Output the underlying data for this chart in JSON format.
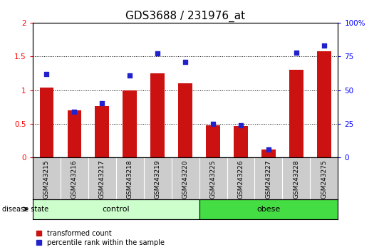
{
  "title": "GDS3688 / 231976_at",
  "samples": [
    "GSM243215",
    "GSM243216",
    "GSM243217",
    "GSM243218",
    "GSM243219",
    "GSM243220",
    "GSM243225",
    "GSM243226",
    "GSM243227",
    "GSM243228",
    "GSM243275"
  ],
  "transformed_count": [
    1.04,
    0.7,
    0.76,
    1.0,
    1.25,
    1.1,
    0.48,
    0.47,
    0.12,
    1.3,
    1.58
  ],
  "percentile_rank_pct": [
    62,
    34,
    40,
    61,
    77,
    71,
    25,
    24,
    6,
    78,
    83
  ],
  "left_ylim": [
    0,
    2
  ],
  "left_yticks": [
    0,
    0.5,
    1.0,
    1.5,
    2.0
  ],
  "left_yticklabels": [
    "0",
    "0.5",
    "1",
    "1.5",
    "2"
  ],
  "right_ylim": [
    0,
    100
  ],
  "right_yticks": [
    0,
    25,
    50,
    75,
    100
  ],
  "right_yticklabels": [
    "0",
    "25",
    "50",
    "75",
    "100%"
  ],
  "bar_color": "#cc1111",
  "dot_color": "#2222cc",
  "control_samples": 6,
  "obese_samples": 5,
  "control_label": "control",
  "obese_label": "obese",
  "disease_state_label": "disease state",
  "legend_bar_label": "transformed count",
  "legend_dot_label": "percentile rank within the sample",
  "control_color": "#ccffcc",
  "obese_color": "#44dd44",
  "tick_bg_color": "#cccccc",
  "title_fontsize": 11,
  "tick_fontsize": 6.5,
  "label_fontsize": 8
}
